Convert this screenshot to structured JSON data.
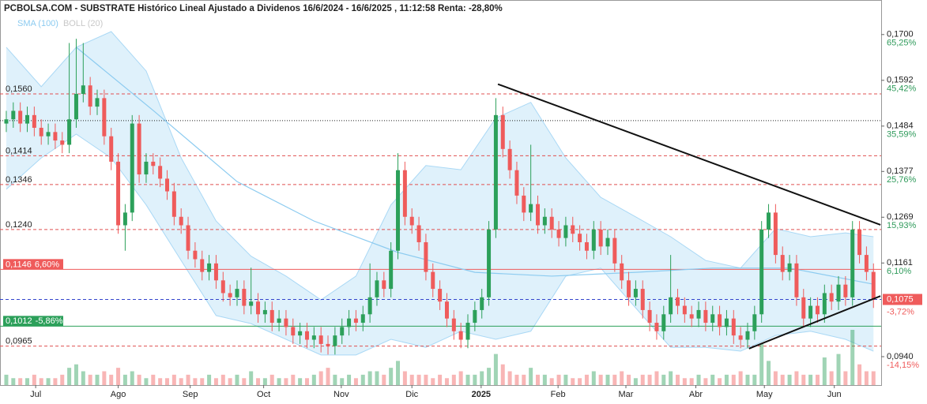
{
  "chart_data": {
    "type": "candlestick",
    "title": "PCBOLSA.COM - SUBSTRATE Histórico Lineal Ajustado a Dividenos 16/6/2024 - 16/6/2025 , 11:12:58 Renta: -28,80%",
    "legend": [
      {
        "name": "SMA (100)",
        "color": "#8ccbf0"
      },
      {
        "name": "BOLL (20)",
        "color": "#c8c8c8"
      }
    ],
    "up_color": "#2ca05a",
    "down_color": "#ef5b5b",
    "xlim": [
      -0.9,
      125.1
    ],
    "ylim": [
      0.0873,
      0.1748
    ],
    "xticks": [
      {
        "value": 4.2,
        "label": "Jul"
      },
      {
        "value": 16,
        "label": "Ago"
      },
      {
        "value": 26.3,
        "label": "Sep"
      },
      {
        "value": 36.8,
        "label": "Oct"
      },
      {
        "value": 47.9,
        "label": "Nov"
      },
      {
        "value": 58,
        "label": "Dic"
      },
      {
        "value": 67.9,
        "label": "2025",
        "bold": true
      },
      {
        "value": 78.9,
        "label": "Feb"
      },
      {
        "value": 88.6,
        "label": "Mar"
      },
      {
        "value": 98.6,
        "label": "Abr"
      },
      {
        "value": 108.4,
        "label": "May"
      },
      {
        "value": 118.4,
        "label": "Jun"
      }
    ],
    "yticks": [
      {
        "value": 0.17,
        "label": "0,1700"
      },
      {
        "value": 0.1592,
        "label": "0,1592"
      },
      {
        "value": 0.1484,
        "label": "0,1484"
      },
      {
        "value": 0.1377,
        "label": "0,1377"
      },
      {
        "value": 0.1269,
        "label": "0,1269"
      },
      {
        "value": 0.1161,
        "label": "0,1161"
      },
      {
        "value": 0.094,
        "label": "0,0940"
      }
    ],
    "ytick_percents": [
      "65,25%",
      "45,42%",
      "35,59%",
      "25,76%",
      "15,93%",
      "6,10%",
      "-14,15%"
    ],
    "last_price": {
      "value": 0.1075,
      "label": "0,1075",
      "percent": "-3,72%",
      "color": "#ef5b5b"
    },
    "levels": [
      {
        "value": 0.156,
        "label": "0,1560",
        "style": "dashed",
        "color": "#e05050"
      },
      {
        "value": 0.1414,
        "label": "0,1414",
        "style": "dashed",
        "color": "#e05050"
      },
      {
        "value": 0.1346,
        "label": "0,1346",
        "style": "dashed",
        "color": "#e05050"
      },
      {
        "value": 0.124,
        "label": "0,1240",
        "style": "dashed",
        "color": "#e05050"
      },
      {
        "value": 0.1146,
        "label": "0,1146",
        "percent": "6,60%",
        "style": "solid",
        "color": "#ef5b5b"
      },
      {
        "value": 0.1012,
        "label": "0,1012",
        "percent": "-5,86%",
        "style": "solid",
        "color": "#2ca05a"
      },
      {
        "value": 0.0965,
        "label": "0,0965",
        "style": "dashed",
        "color": "#e05050"
      }
    ],
    "reference_line": 0.1497,
    "trendlines": [
      {
        "x": [
          70.3,
          125
        ],
        "y": [
          0.1583,
          0.1251
        ]
      },
      {
        "x": [
          106.2,
          125
        ],
        "y": [
          0.0959,
          0.1083
        ]
      }
    ],
    "open": [
      0.149,
      0.15,
      0.152,
      0.149,
      0.151,
      0.148,
      0.146,
      0.147,
      0.145,
      0.144,
      0.15,
      0.156,
      0.158,
      0.153,
      0.155,
      0.146,
      0.14,
      0.125,
      0.128,
      0.149,
      0.137,
      0.14,
      0.139,
      0.136,
      0.133,
      0.127,
      0.125,
      0.119,
      0.117,
      0.114,
      0.116,
      0.112,
      0.109,
      0.108,
      0.11,
      0.106,
      0.107,
      0.104,
      0.105,
      0.102,
      0.103,
      0.101,
      0.099,
      0.1,
      0.098,
      0.099,
      0.097,
      0.0965,
      0.099,
      0.101,
      0.103,
      0.102,
      0.104,
      0.108,
      0.112,
      0.11,
      0.119,
      0.138,
      0.127,
      0.125,
      0.121,
      0.114,
      0.11,
      0.107,
      0.103,
      0.1,
      0.098,
      0.102,
      0.105,
      0.108,
      0.124,
      0.151,
      0.143,
      0.138,
      0.132,
      0.128,
      0.13,
      0.125,
      0.127,
      0.124,
      0.122,
      0.125,
      0.123,
      0.121,
      0.119,
      0.124,
      0.12,
      0.122,
      0.116,
      0.112,
      0.108,
      0.11,
      0.105,
      0.102,
      0.1,
      0.104,
      0.108,
      0.106,
      0.104,
      0.103,
      0.105,
      0.102,
      0.104,
      0.101,
      0.103,
      0.099,
      0.098,
      0.1,
      0.104,
      0.124,
      0.128,
      0.118,
      0.114,
      0.116,
      0.108,
      0.103,
      0.106,
      0.104,
      0.109,
      0.107,
      0.111,
      0.108,
      0.124,
      0.118,
      0.114
    ],
    "high": [
      0.152,
      0.154,
      0.154,
      0.153,
      0.153,
      0.15,
      0.149,
      0.149,
      0.147,
      0.168,
      0.169,
      0.168,
      0.16,
      0.157,
      0.157,
      0.148,
      0.142,
      0.13,
      0.151,
      0.151,
      0.142,
      0.142,
      0.141,
      0.138,
      0.135,
      0.129,
      0.127,
      0.121,
      0.119,
      0.118,
      0.118,
      0.114,
      0.111,
      0.112,
      0.112,
      0.115,
      0.109,
      0.107,
      0.107,
      0.105,
      0.105,
      0.103,
      0.102,
      0.102,
      0.101,
      0.101,
      0.099,
      0.101,
      0.103,
      0.105,
      0.105,
      0.106,
      0.116,
      0.114,
      0.114,
      0.121,
      0.142,
      0.14,
      0.129,
      0.127,
      0.123,
      0.116,
      0.112,
      0.109,
      0.105,
      0.102,
      0.104,
      0.107,
      0.11,
      0.126,
      0.155,
      0.153,
      0.145,
      0.14,
      0.134,
      0.144,
      0.132,
      0.129,
      0.129,
      0.126,
      0.127,
      0.127,
      0.125,
      0.123,
      0.126,
      0.126,
      0.124,
      0.124,
      0.118,
      0.114,
      0.112,
      0.112,
      0.107,
      0.104,
      0.106,
      0.118,
      0.11,
      0.108,
      0.106,
      0.107,
      0.107,
      0.106,
      0.106,
      0.105,
      0.105,
      0.101,
      0.102,
      0.106,
      0.126,
      0.13,
      0.13,
      0.12,
      0.118,
      0.118,
      0.11,
      0.108,
      0.108,
      0.111,
      0.111,
      0.113,
      0.113,
      0.126,
      0.126,
      0.12,
      0.116
    ],
    "low": [
      0.147,
      0.148,
      0.147,
      0.147,
      0.146,
      0.144,
      0.144,
      0.143,
      0.142,
      0.142,
      0.148,
      0.154,
      0.151,
      0.151,
      0.144,
      0.138,
      0.123,
      0.119,
      0.126,
      0.135,
      0.135,
      0.137,
      0.134,
      0.131,
      0.125,
      0.123,
      0.117,
      0.115,
      0.112,
      0.112,
      0.11,
      0.107,
      0.106,
      0.106,
      0.104,
      0.104,
      0.102,
      0.102,
      0.1,
      0.1,
      0.099,
      0.097,
      0.097,
      0.096,
      0.096,
      0.095,
      0.0945,
      0.0945,
      0.097,
      0.099,
      0.1,
      0.1,
      0.102,
      0.106,
      0.108,
      0.108,
      0.117,
      0.125,
      0.123,
      0.119,
      0.112,
      0.108,
      0.105,
      0.101,
      0.098,
      0.096,
      0.096,
      0.1,
      0.103,
      0.106,
      0.122,
      0.141,
      0.136,
      0.13,
      0.126,
      0.126,
      0.123,
      0.123,
      0.122,
      0.12,
      0.12,
      0.121,
      0.119,
      0.117,
      0.117,
      0.118,
      0.118,
      0.114,
      0.11,
      0.106,
      0.106,
      0.103,
      0.1,
      0.098,
      0.098,
      0.102,
      0.104,
      0.102,
      0.101,
      0.101,
      0.1,
      0.1,
      0.099,
      0.099,
      0.097,
      0.096,
      0.096,
      0.098,
      0.102,
      0.122,
      0.116,
      0.112,
      0.112,
      0.106,
      0.101,
      0.101,
      0.102,
      0.102,
      0.105,
      0.105,
      0.106,
      0.106,
      0.116,
      0.112,
      0.1055
    ],
    "close": [
      0.15,
      0.152,
      0.149,
      0.151,
      0.148,
      0.146,
      0.147,
      0.145,
      0.144,
      0.15,
      0.156,
      0.158,
      0.153,
      0.155,
      0.146,
      0.14,
      0.125,
      0.128,
      0.149,
      0.137,
      0.14,
      0.139,
      0.136,
      0.133,
      0.127,
      0.125,
      0.119,
      0.117,
      0.114,
      0.116,
      0.112,
      0.109,
      0.108,
      0.11,
      0.106,
      0.107,
      0.104,
      0.105,
      0.102,
      0.103,
      0.101,
      0.099,
      0.1,
      0.098,
      0.099,
      0.097,
      0.0965,
      0.099,
      0.101,
      0.103,
      0.102,
      0.104,
      0.108,
      0.112,
      0.11,
      0.119,
      0.138,
      0.127,
      0.125,
      0.121,
      0.114,
      0.11,
      0.107,
      0.103,
      0.1,
      0.098,
      0.102,
      0.105,
      0.108,
      0.124,
      0.151,
      0.143,
      0.138,
      0.132,
      0.128,
      0.13,
      0.125,
      0.127,
      0.124,
      0.122,
      0.125,
      0.123,
      0.121,
      0.119,
      0.124,
      0.12,
      0.122,
      0.116,
      0.112,
      0.108,
      0.11,
      0.105,
      0.102,
      0.1,
      0.104,
      0.108,
      0.106,
      0.104,
      0.103,
      0.105,
      0.102,
      0.104,
      0.101,
      0.103,
      0.099,
      0.098,
      0.1,
      0.104,
      0.124,
      0.128,
      0.118,
      0.114,
      0.116,
      0.108,
      0.103,
      0.106,
      0.104,
      0.109,
      0.107,
      0.111,
      0.108,
      0.124,
      0.118,
      0.114,
      0.1075
    ],
    "volume": [
      3,
      2,
      2,
      2,
      3,
      2,
      2,
      2,
      3,
      5,
      6,
      4,
      3,
      3,
      4,
      3,
      5,
      3,
      4,
      3,
      2,
      3,
      2,
      2,
      3,
      2,
      3,
      2,
      2,
      3,
      2,
      3,
      2,
      3,
      2,
      4,
      2,
      2,
      3,
      2,
      2,
      3,
      2,
      2,
      3,
      4,
      5,
      3,
      2,
      3,
      2,
      3,
      4,
      4,
      3,
      5,
      7,
      4,
      3,
      3,
      3,
      2,
      3,
      2,
      3,
      4,
      3,
      3,
      4,
      5,
      9,
      6,
      4,
      3,
      3,
      5,
      3,
      3,
      2,
      3,
      3,
      2,
      2,
      3,
      4,
      3,
      3,
      3,
      4,
      3,
      2,
      3,
      3,
      4,
      3,
      4,
      3,
      2,
      2,
      3,
      2,
      3,
      2,
      3,
      3,
      4,
      3,
      3,
      12,
      7,
      4,
      3,
      3,
      4,
      3,
      3,
      3,
      8,
      4,
      9,
      4,
      16,
      6,
      4,
      4
    ],
    "boll_x": [
      0,
      5,
      10,
      15,
      20,
      25,
      30,
      35,
      40,
      45,
      50,
      55,
      60,
      65,
      70,
      75,
      80,
      85,
      90,
      95,
      100,
      105,
      110,
      115,
      120,
      124
    ],
    "boll_upper": [
      0.167,
      0.1577,
      0.167,
      0.1707,
      0.1614,
      0.1409,
      0.126,
      0.1177,
      0.113,
      0.1074,
      0.113,
      0.1298,
      0.1391,
      0.1381,
      0.1503,
      0.154,
      0.1409,
      0.1316,
      0.127,
      0.1223,
      0.1167,
      0.1149,
      0.1242,
      0.1223,
      0.1232,
      0.1223
    ],
    "boll_lower": [
      0.1335,
      0.1409,
      0.1465,
      0.1409,
      0.1298,
      0.1167,
      0.1037,
      0.1018,
      0.0981,
      0.0944,
      0.0944,
      0.0981,
      0.0962,
      0.1,
      0.0981,
      0.1,
      0.113,
      0.1149,
      0.1055,
      0.0962,
      0.0962,
      0.0953,
      0.099,
      0.1,
      0.0981,
      0.0953
    ],
    "sma_x": [
      10,
      21,
      33,
      44,
      56,
      67,
      78,
      90,
      101,
      112,
      124
    ],
    "sma": [
      0.167,
      0.1521,
      0.1353,
      0.126,
      0.1186,
      0.1139,
      0.113,
      0.1139,
      0.1149,
      0.1149,
      0.1111
    ]
  }
}
